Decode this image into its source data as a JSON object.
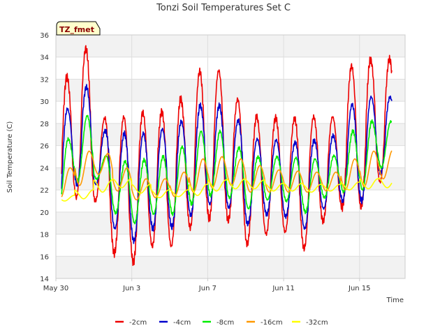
{
  "chart_data": {
    "type": "line",
    "title": "Tonzi Soil Temperatures Set C",
    "xlabel": "Time",
    "ylabel": "Soil Temperature (C)",
    "badge": "TZ_fmet",
    "ylim": [
      14,
      36
    ],
    "yticks": [
      14,
      16,
      18,
      20,
      22,
      24,
      26,
      28,
      30,
      32,
      34,
      36
    ],
    "xlim_days": [
      0,
      18.4
    ],
    "xticks": [
      {
        "label": "May 30",
        "day": 0
      },
      {
        "label": "Jun 3",
        "day": 4
      },
      {
        "label": "Jun 7",
        "day": 8
      },
      {
        "label": "Jun 11",
        "day": 12
      },
      {
        "label": "Jun 15",
        "day": 16
      }
    ],
    "grid": true,
    "legend_position": "bottom",
    "x_start_day": 0.3,
    "x_end_day": 17.7,
    "daily_peaks": {
      "-2cm": [
        32.2,
        34.8,
        28.5,
        28.6,
        29.0,
        29.1,
        30.2,
        32.7,
        32.8,
        30.2,
        28.6,
        28.5,
        28.5,
        28.6,
        28.6,
        33.2,
        33.8,
        33.8
      ],
      "-4cm": [
        29.3,
        31.3,
        27.4,
        27.1,
        27.1,
        27.5,
        28.2,
        29.6,
        29.6,
        28.3,
        26.6,
        26.5,
        26.3,
        26.5,
        26.9,
        29.7,
        30.4,
        30.4
      ],
      "-8cm": [
        26.6,
        28.7,
        25.1,
        24.6,
        24.7,
        25.0,
        25.9,
        27.3,
        27.3,
        25.8,
        25.0,
        25.0,
        24.9,
        24.8,
        25.1,
        27.3,
        28.2,
        28.2
      ],
      "-16cm": [
        24.0,
        25.5,
        25.3,
        24.0,
        23.0,
        23.0,
        23.6,
        24.8,
        25.0,
        24.8,
        24.2,
        23.8,
        23.7,
        23.6,
        23.6,
        24.8,
        25.5,
        25.6
      ],
      "-32cm": [
        21.5,
        22.0,
        22.9,
        23.0,
        22.5,
        22.0,
        22.0,
        22.5,
        22.9,
        23.0,
        22.9,
        22.6,
        22.6,
        22.5,
        22.5,
        22.7,
        23.0,
        23.1
      ]
    },
    "daily_troughs": {
      "-2cm": [
        18.5,
        21.3,
        21.0,
        16.3,
        15.5,
        16.9,
        16.9,
        18.6,
        19.4,
        19.2,
        17.1,
        18.0,
        18.2,
        16.7,
        19.2,
        20.4,
        20.4,
        22.7
      ],
      "-4cm": [
        19.7,
        22.5,
        22.5,
        18.5,
        17.4,
        18.5,
        18.6,
        19.7,
        20.7,
        20.4,
        18.9,
        19.8,
        19.6,
        18.5,
        20.3,
        21.0,
        21.0,
        23.5
      ],
      "-8cm": [
        20.3,
        22.8,
        23.0,
        19.9,
        19.0,
        19.8,
        19.8,
        20.7,
        21.5,
        21.3,
        20.3,
        21.1,
        21.0,
        20.0,
        21.3,
        21.8,
        22.0,
        24.0
      ],
      "-16cm": [
        21.3,
        22.4,
        23.4,
        21.9,
        21.1,
        21.3,
        21.4,
        21.8,
        22.2,
        22.4,
        21.8,
        21.8,
        21.8,
        21.8,
        21.9,
        22.0,
        22.3,
        23.0
      ],
      "-32cm": [
        21.0,
        21.2,
        21.8,
        22.2,
        21.7,
        21.3,
        21.4,
        21.5,
        21.9,
        22.1,
        22.1,
        21.9,
        21.9,
        21.8,
        21.9,
        22.0,
        22.1,
        22.2
      ]
    },
    "series": [
      {
        "name": "-2cm",
        "color": "#ee0000"
      },
      {
        "name": "-4cm",
        "color": "#0000cc"
      },
      {
        "name": "-8cm",
        "color": "#00ee00"
      },
      {
        "name": "-16cm",
        "color": "#ff9900"
      },
      {
        "name": "-32cm",
        "color": "#ffff00"
      }
    ]
  }
}
